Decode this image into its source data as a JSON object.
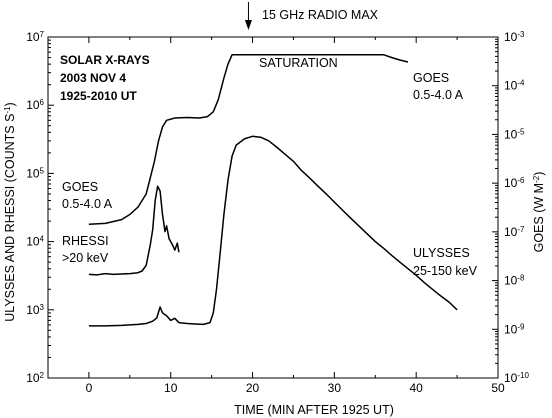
{
  "chart_data": {
    "type": "line",
    "title_lines": [
      "SOLAR X-RAYS",
      "2003 NOV 4",
      "1925-2010 UT"
    ],
    "top_annotation": "15 GHz RADIO MAX",
    "top_annotation_x": 19.5,
    "saturation_label": "SATURATION",
    "xlabel": "TIME (MIN AFTER 1925 UT)",
    "ylabel_left": "ULYSSES AND RHESSI (COUNTS S",
    "ylabel_left_sup": "-1",
    "ylabel_left_close": ")",
    "ylabel_right": "GOES (W M",
    "ylabel_right_sup": "-2",
    "ylabel_right_close": ")",
    "xlim": [
      -5,
      50
    ],
    "ylim_left": [
      100,
      10000000
    ],
    "ylim_right": [
      1e-10,
      0.001
    ],
    "x_ticks": [
      0,
      10,
      20,
      30,
      40,
      50
    ],
    "y_left_ticks": [
      {
        "base": "10",
        "exp": "2"
      },
      {
        "base": "10",
        "exp": "3"
      },
      {
        "base": "10",
        "exp": "4"
      },
      {
        "base": "10",
        "exp": "5"
      },
      {
        "base": "10",
        "exp": "6"
      },
      {
        "base": "10",
        "exp": "7"
      }
    ],
    "y_right_ticks": [
      {
        "base": "10",
        "exp": "-10"
      },
      {
        "base": "10",
        "exp": "-9"
      },
      {
        "base": "10",
        "exp": "-8"
      },
      {
        "base": "10",
        "exp": "-7"
      },
      {
        "base": "10",
        "exp": "-6"
      },
      {
        "base": "10",
        "exp": "-5"
      },
      {
        "base": "10",
        "exp": "-4"
      },
      {
        "base": "10",
        "exp": "-3"
      }
    ],
    "series": [
      {
        "name": "GOES 0.5-4.0 A",
        "label_lines": [
          "GOES",
          "0.5-4.0 A"
        ],
        "axis": "left",
        "points": [
          [
            0,
            18000
          ],
          [
            2,
            18500
          ],
          [
            4,
            21000
          ],
          [
            5,
            25000
          ],
          [
            6,
            32000
          ],
          [
            7,
            50000
          ],
          [
            8,
            150000
          ],
          [
            8.5,
            300000
          ],
          [
            9,
            480000
          ],
          [
            9.5,
            600000
          ],
          [
            10.5,
            650000
          ],
          [
            12,
            660000
          ],
          [
            13.5,
            650000
          ],
          [
            14.5,
            680000
          ],
          [
            15.2,
            800000
          ],
          [
            15.8,
            1200000
          ],
          [
            16.5,
            2500000
          ],
          [
            17,
            4000000
          ],
          [
            17.5,
            5500000
          ],
          [
            36,
            5500000
          ],
          [
            37,
            5000000
          ],
          [
            38,
            4600000
          ],
          [
            39,
            4300000
          ]
        ]
      },
      {
        "name": "RHESSI >20 keV",
        "label_lines": [
          "RHESSI",
          ">20 keV"
        ],
        "axis": "left",
        "points": [
          [
            0,
            3300
          ],
          [
            1,
            3250
          ],
          [
            2,
            3400
          ],
          [
            3,
            3300
          ],
          [
            4,
            3350
          ],
          [
            5,
            3400
          ],
          [
            6,
            3500
          ],
          [
            6.5,
            3700
          ],
          [
            7,
            4500
          ],
          [
            7.5,
            9000
          ],
          [
            7.8,
            15000
          ],
          [
            8.1,
            40000
          ],
          [
            8.4,
            65000
          ],
          [
            8.7,
            55000
          ],
          [
            9,
            25000
          ],
          [
            9.3,
            14000
          ],
          [
            9.5,
            17000
          ],
          [
            9.8,
            11000
          ],
          [
            10.2,
            9000
          ],
          [
            10.5,
            7500
          ],
          [
            10.8,
            9500
          ],
          [
            11,
            7000
          ]
        ]
      },
      {
        "name": "ULYSSES 25-150 keV",
        "label_lines": [
          "ULYSSES",
          "25-150 keV"
        ],
        "axis": "left",
        "points": [
          [
            0,
            580
          ],
          [
            2,
            580
          ],
          [
            4,
            590
          ],
          [
            5,
            600
          ],
          [
            6,
            610
          ],
          [
            7,
            630
          ],
          [
            7.8,
            680
          ],
          [
            8.3,
            760
          ],
          [
            8.7,
            1100
          ],
          [
            9,
            900
          ],
          [
            9.5,
            820
          ],
          [
            10,
            700
          ],
          [
            10.5,
            750
          ],
          [
            11,
            650
          ],
          [
            12,
            630
          ],
          [
            13,
            620
          ],
          [
            14,
            610
          ],
          [
            14.8,
            650
          ],
          [
            15.2,
            900
          ],
          [
            15.6,
            2000
          ],
          [
            16,
            6000
          ],
          [
            16.5,
            25000
          ],
          [
            17,
            80000
          ],
          [
            17.5,
            180000
          ],
          [
            18,
            260000
          ],
          [
            19,
            320000
          ],
          [
            20,
            350000
          ],
          [
            21,
            340000
          ],
          [
            22,
            300000
          ],
          [
            23,
            240000
          ],
          [
            24,
            190000
          ],
          [
            25,
            150000
          ],
          [
            26,
            110000
          ],
          [
            27,
            85000
          ],
          [
            28,
            65000
          ],
          [
            29,
            50000
          ],
          [
            30,
            38000
          ],
          [
            31,
            29000
          ],
          [
            32,
            22000
          ],
          [
            33,
            17000
          ],
          [
            34,
            13000
          ],
          [
            35,
            10000
          ],
          [
            36,
            8000
          ],
          [
            37,
            6300
          ],
          [
            38,
            5000
          ],
          [
            39,
            4000
          ],
          [
            40,
            3200
          ],
          [
            41,
            2500
          ],
          [
            42,
            2000
          ],
          [
            43,
            1600
          ],
          [
            44,
            1300
          ],
          [
            45,
            1000
          ]
        ]
      }
    ]
  }
}
